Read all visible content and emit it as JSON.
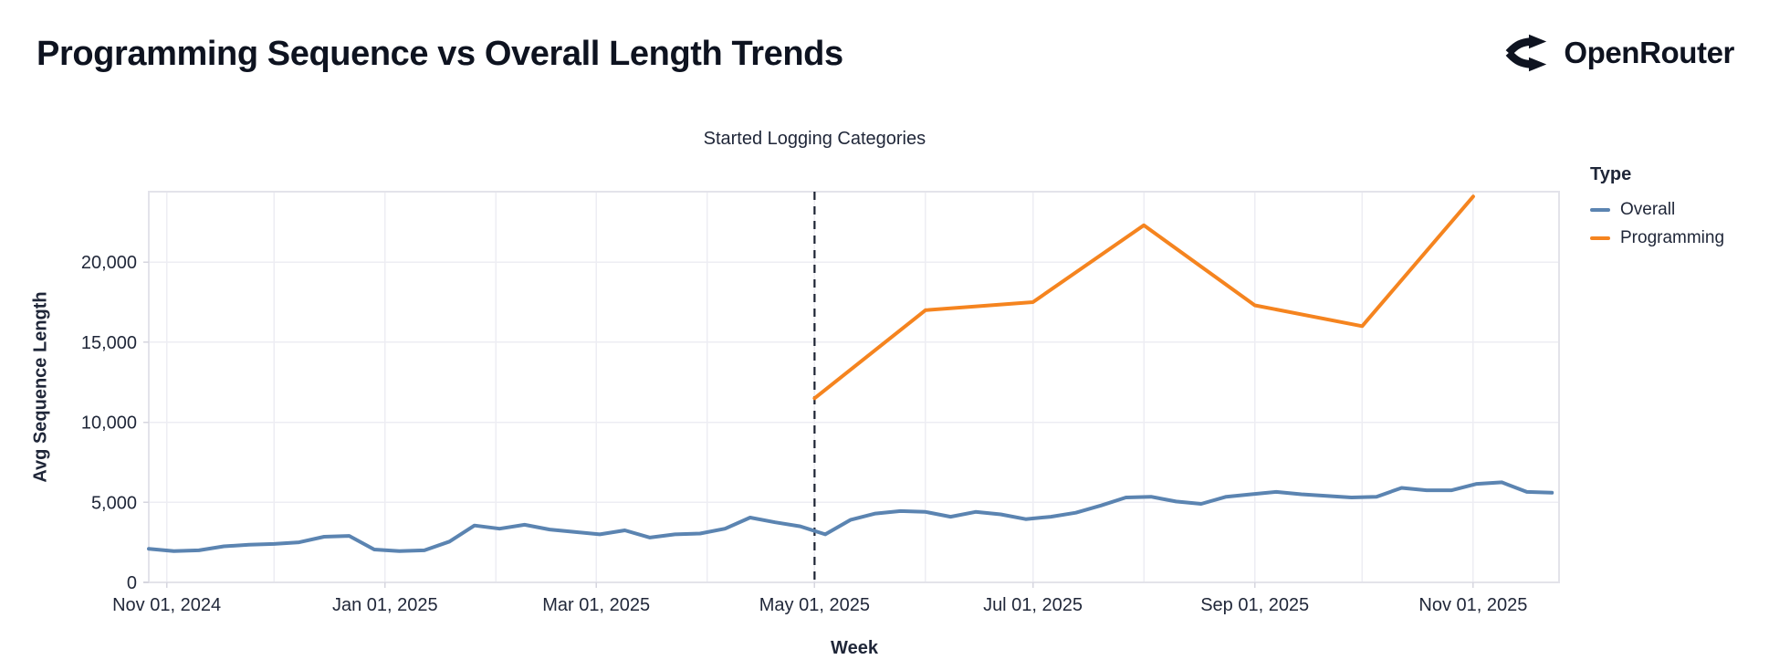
{
  "header": {
    "brand": "OpenRouter"
  },
  "legend": {
    "title": "Type"
  },
  "chart_data": {
    "type": "line",
    "title": "Programming Sequence vs Overall Length Trends",
    "xlabel": "Week",
    "ylabel": "Avg Sequence Length",
    "x_unit": "days since 2024-11-01",
    "x_domain": [
      -5,
      389
    ],
    "y_domain": [
      0,
      24400
    ],
    "grid": true,
    "legend_position": "right",
    "annotation": {
      "label": "Started Logging Categories",
      "day": 181
    },
    "y_ticks": [
      {
        "value": 0,
        "label": "0"
      },
      {
        "value": 5000,
        "label": "5,000"
      },
      {
        "value": 10000,
        "label": "10,000"
      },
      {
        "value": 15000,
        "label": "15,000"
      },
      {
        "value": 20000,
        "label": "20,000"
      }
    ],
    "x_ticks": [
      {
        "day": 0,
        "label": "Nov 01, 2024"
      },
      {
        "day": 61,
        "label": "Jan 01, 2025"
      },
      {
        "day": 120,
        "label": "Mar 01, 2025"
      },
      {
        "day": 181,
        "label": "May 01, 2025"
      },
      {
        "day": 242,
        "label": "Jul 01, 2025"
      },
      {
        "day": 304,
        "label": "Sep 01, 2025"
      },
      {
        "day": 365,
        "label": "Nov 01, 2025"
      }
    ],
    "x_gridline_days": [
      0,
      30,
      61,
      92,
      120,
      151,
      181,
      212,
      242,
      273,
      304,
      334,
      365
    ],
    "series": [
      {
        "name": "Overall",
        "color": "#5b84b1",
        "points": [
          [
            -5,
            2100
          ],
          [
            2,
            1950
          ],
          [
            9,
            2000
          ],
          [
            16,
            2250
          ],
          [
            23,
            2350
          ],
          [
            30,
            2400
          ],
          [
            37,
            2500
          ],
          [
            44,
            2850
          ],
          [
            51,
            2900
          ],
          [
            58,
            2050
          ],
          [
            65,
            1950
          ],
          [
            72,
            2000
          ],
          [
            79,
            2550
          ],
          [
            86,
            3550
          ],
          [
            93,
            3350
          ],
          [
            100,
            3600
          ],
          [
            107,
            3300
          ],
          [
            114,
            3150
          ],
          [
            121,
            3000
          ],
          [
            128,
            3250
          ],
          [
            135,
            2800
          ],
          [
            142,
            3000
          ],
          [
            149,
            3050
          ],
          [
            156,
            3350
          ],
          [
            163,
            4050
          ],
          [
            170,
            3750
          ],
          [
            177,
            3500
          ],
          [
            184,
            3000
          ],
          [
            191,
            3900
          ],
          [
            198,
            4300
          ],
          [
            205,
            4450
          ],
          [
            212,
            4400
          ],
          [
            219,
            4100
          ],
          [
            226,
            4400
          ],
          [
            233,
            4250
          ],
          [
            240,
            3950
          ],
          [
            247,
            4100
          ],
          [
            254,
            4350
          ],
          [
            261,
            4800
          ],
          [
            268,
            5300
          ],
          [
            275,
            5350
          ],
          [
            282,
            5050
          ],
          [
            289,
            4900
          ],
          [
            296,
            5350
          ],
          [
            303,
            5500
          ],
          [
            310,
            5650
          ],
          [
            317,
            5500
          ],
          [
            324,
            5400
          ],
          [
            331,
            5300
          ],
          [
            338,
            5350
          ],
          [
            345,
            5900
          ],
          [
            352,
            5750
          ],
          [
            359,
            5750
          ],
          [
            366,
            6150
          ],
          [
            373,
            6250
          ],
          [
            380,
            5650
          ],
          [
            387,
            5600
          ]
        ]
      },
      {
        "name": "Programming",
        "color": "#f5841f",
        "points": [
          [
            181,
            11500
          ],
          [
            212,
            17000
          ],
          [
            242,
            17500
          ],
          [
            273,
            22300
          ],
          [
            304,
            17300
          ],
          [
            334,
            16000
          ],
          [
            365,
            24100
          ]
        ]
      }
    ],
    "colors": {
      "gridline": "#ededf3",
      "border": "#e3e3ea",
      "tick": "#d6d6df",
      "dashed_line": "#1c2333",
      "axis_text": "#1f2638"
    }
  }
}
